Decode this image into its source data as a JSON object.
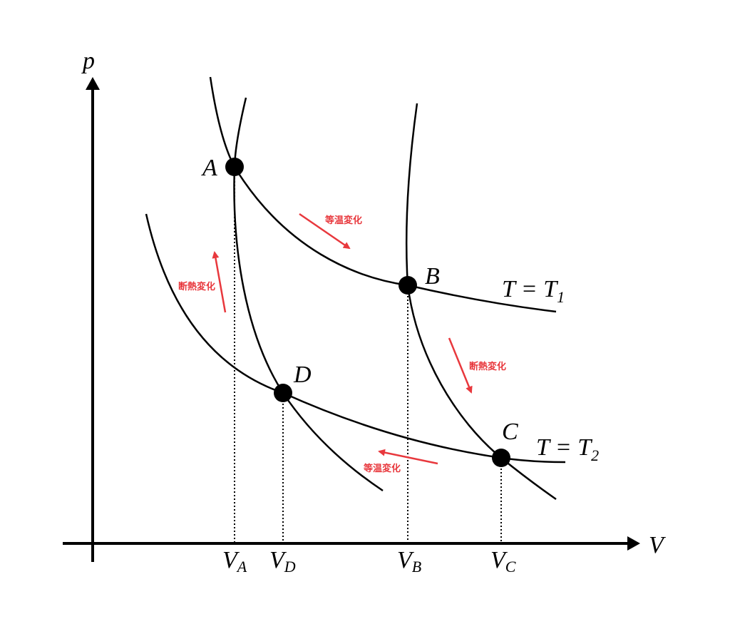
{
  "axes": {
    "y_label": "p",
    "x_label": "V"
  },
  "points": [
    {
      "label": "A"
    },
    {
      "label": "B"
    },
    {
      "label": "C"
    },
    {
      "label": "D"
    }
  ],
  "curves": [
    {
      "main": "T = T",
      "sub": "1"
    },
    {
      "main": "T = T",
      "sub": "2"
    }
  ],
  "volume_marks": [
    {
      "main": "V",
      "sub": "A"
    },
    {
      "main": "V",
      "sub": "D"
    },
    {
      "main": "V",
      "sub": "B"
    },
    {
      "main": "V",
      "sub": "C"
    }
  ],
  "processes": [
    "等温変化",
    "断熱変化",
    "等温変化",
    "断熱変化"
  ]
}
